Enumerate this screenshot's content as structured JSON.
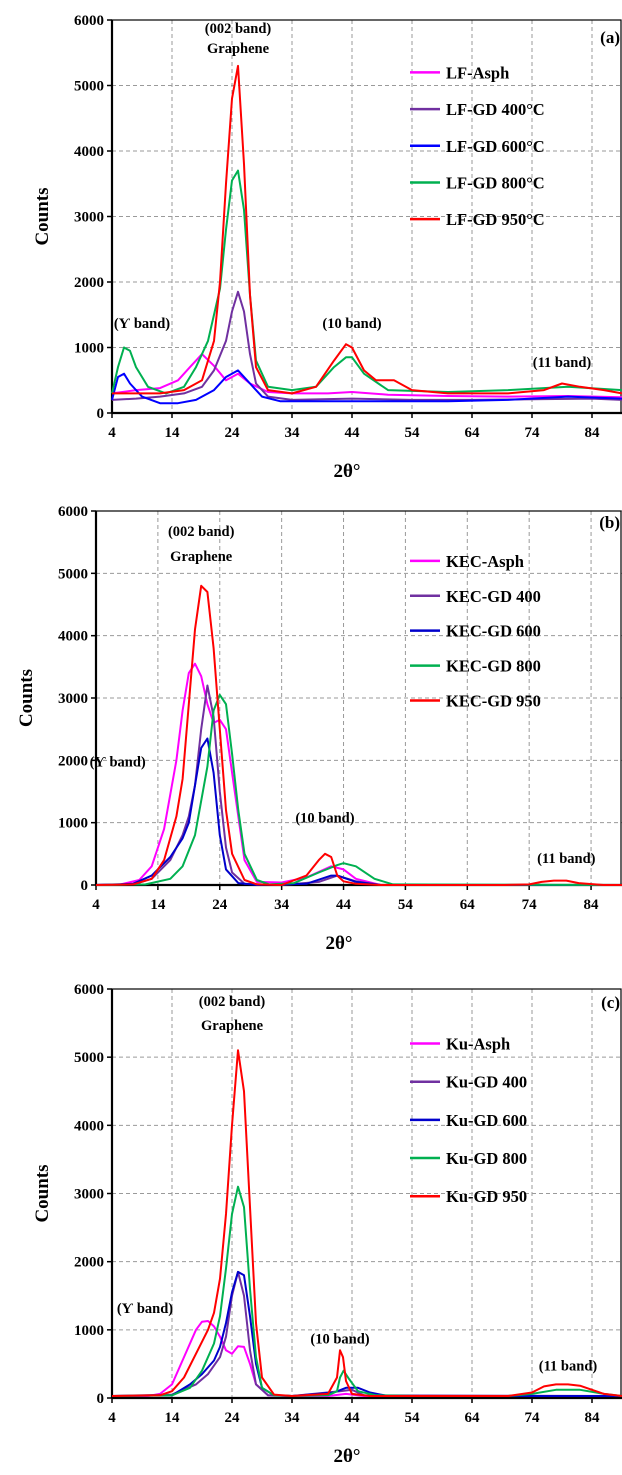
{
  "chart_data": [
    {
      "type": "line",
      "panel_label": "(a)",
      "xlabel": "2θ°",
      "ylabel": "Counts",
      "xlim": [
        4,
        89
      ],
      "ylim": [
        0,
        6000
      ],
      "xticks": [
        4,
        14,
        24,
        34,
        44,
        54,
        64,
        74,
        84
      ],
      "yticks": [
        0,
        1000,
        2000,
        3000,
        4000,
        5000,
        6000
      ],
      "grid": true,
      "legend": "top-right",
      "annotations": [
        {
          "text": "(002 band)",
          "x": 25,
          "y": 5800
        },
        {
          "text": "Graphene",
          "x": 25,
          "y": 5500
        },
        {
          "text": "(Ƴ band)",
          "x": 9,
          "y": 1300
        },
        {
          "text": "(10 band)",
          "x": 44,
          "y": 1300
        },
        {
          "text": "(11 band)",
          "x": 79,
          "y": 700
        }
      ],
      "series": [
        {
          "name": "LF-Asph",
          "color": "#ff00ff",
          "x": [
            4,
            8,
            12,
            15,
            17,
            19,
            21,
            23,
            25,
            27,
            30,
            34,
            40,
            44,
            50,
            60,
            70,
            80,
            89
          ],
          "y": [
            300,
            350,
            380,
            500,
            700,
            900,
            720,
            500,
            600,
            450,
            320,
            300,
            300,
            320,
            280,
            260,
            250,
            260,
            240
          ]
        },
        {
          "name": "LF-GD 400°C",
          "color": "#7030a0",
          "x": [
            4,
            8,
            12,
            16,
            19,
            21,
            23,
            24,
            25,
            26,
            27,
            28,
            30,
            34,
            44,
            54,
            64,
            74,
            84,
            89
          ],
          "y": [
            200,
            220,
            250,
            300,
            400,
            650,
            1100,
            1550,
            1850,
            1550,
            900,
            450,
            250,
            200,
            220,
            200,
            200,
            210,
            220,
            200
          ]
        },
        {
          "name": "LF-GD 600°C",
          "color": "#0000ff",
          "x": [
            4,
            5,
            6,
            7,
            9,
            12,
            15,
            18,
            21,
            23,
            25,
            27,
            29,
            32,
            40,
            50,
            60,
            70,
            80,
            89
          ],
          "y": [
            200,
            550,
            600,
            450,
            250,
            150,
            150,
            200,
            350,
            550,
            650,
            450,
            250,
            180,
            180,
            180,
            180,
            200,
            250,
            220
          ]
        },
        {
          "name": "LF-GD 800°C",
          "color": "#00b050",
          "x": [
            4,
            5,
            6,
            7,
            8,
            10,
            13,
            16,
            18,
            20,
            22,
            23,
            24,
            25,
            26,
            27,
            28,
            30,
            34,
            38,
            41,
            43,
            44,
            46,
            50,
            60,
            70,
            80,
            89
          ],
          "y": [
            300,
            700,
            1000,
            950,
            700,
            400,
            300,
            400,
            700,
            1100,
            1900,
            2800,
            3550,
            3700,
            3100,
            1800,
            800,
            400,
            350,
            400,
            700,
            850,
            850,
            600,
            350,
            320,
            350,
            400,
            350
          ]
        },
        {
          "name": "LF-GD 950°C",
          "color": "#ff0000",
          "x": [
            4,
            8,
            12,
            16,
            19,
            21,
            22,
            23,
            24,
            25,
            26,
            27,
            28,
            30,
            34,
            38,
            41,
            43,
            44,
            46,
            48,
            51,
            54,
            60,
            70,
            76,
            79,
            82,
            86,
            89
          ],
          "y": [
            300,
            300,
            300,
            350,
            500,
            1100,
            2000,
            3500,
            4800,
            5300,
            3800,
            1800,
            700,
            350,
            300,
            400,
            800,
            1050,
            1000,
            650,
            500,
            500,
            350,
            300,
            300,
            350,
            450,
            400,
            350,
            300
          ]
        }
      ]
    },
    {
      "type": "line",
      "panel_label": "(b)",
      "xlabel": "2θ°",
      "ylabel": "Counts",
      "xlim": [
        4,
        89
      ],
      "ylim": [
        0,
        6000
      ],
      "xticks": [
        4,
        14,
        24,
        34,
        44,
        54,
        64,
        74,
        84
      ],
      "yticks": [
        0,
        1000,
        2000,
        3000,
        4000,
        5000,
        6000
      ],
      "grid": true,
      "legend": "top-right",
      "annotations": [
        {
          "text": "(002 band)",
          "x": 21,
          "y": 5600
        },
        {
          "text": "Graphene",
          "x": 21,
          "y": 5200
        },
        {
          "text": "(Ƴ band)",
          "x": 7.5,
          "y": 1900
        },
        {
          "text": "(10 band)",
          "x": 41,
          "y": 1000
        },
        {
          "text": "(11 band)",
          "x": 80,
          "y": 350
        }
      ],
      "series": [
        {
          "name": "KEC-Asph",
          "color": "#ff00ff",
          "x": [
            4,
            8,
            11,
            13,
            15,
            17,
            18,
            19,
            20,
            21,
            22,
            23,
            24,
            25,
            26,
            28,
            30,
            34,
            38,
            42,
            44,
            46,
            50,
            89
          ],
          "y": [
            0,
            10,
            80,
            300,
            900,
            2000,
            2800,
            3400,
            3550,
            3350,
            2900,
            2600,
            2650,
            2500,
            1800,
            400,
            50,
            40,
            120,
            300,
            250,
            100,
            0,
            0
          ]
        },
        {
          "name": "KEC-GD 400",
          "color": "#7030a0",
          "x": [
            4,
            10,
            13,
            16,
            18,
            19,
            20,
            21,
            22,
            23,
            24,
            25,
            26,
            28,
            34,
            40,
            43,
            46,
            50,
            89
          ],
          "y": [
            0,
            10,
            100,
            400,
            800,
            1100,
            1600,
            2500,
            3200,
            2700,
            1500,
            600,
            200,
            20,
            0,
            50,
            150,
            60,
            0,
            0
          ]
        },
        {
          "name": "KEC-GD 600",
          "color": "#0000cc",
          "x": [
            4,
            10,
            13,
            16,
            18,
            19,
            20,
            21,
            22,
            23,
            24,
            25,
            27,
            30,
            38,
            42,
            43,
            46,
            50,
            89
          ],
          "y": [
            0,
            20,
            150,
            450,
            750,
            1000,
            1600,
            2200,
            2350,
            1800,
            800,
            250,
            30,
            0,
            20,
            150,
            150,
            50,
            0,
            0
          ]
        },
        {
          "name": "KEC-GD 800",
          "color": "#00b050",
          "x": [
            4,
            12,
            16,
            18,
            20,
            22,
            23,
            24,
            25,
            26,
            27,
            28,
            30,
            32,
            36,
            40,
            43,
            44,
            46,
            49,
            52,
            89
          ],
          "y": [
            0,
            10,
            100,
            300,
            800,
            1900,
            2800,
            3050,
            2900,
            2100,
            1200,
            500,
            80,
            10,
            30,
            200,
            320,
            350,
            300,
            100,
            10,
            0
          ]
        },
        {
          "name": "KEC-GD 950",
          "color": "#ff0000",
          "x": [
            4,
            10,
            13,
            15,
            17,
            18,
            19,
            20,
            21,
            22,
            23,
            24,
            25,
            26,
            28,
            30,
            34,
            38,
            40,
            41,
            42,
            43,
            44,
            46,
            50,
            60,
            70,
            74,
            76,
            78,
            80,
            82,
            86,
            89
          ],
          "y": [
            0,
            10,
            100,
            400,
            1100,
            1700,
            2900,
            4100,
            4800,
            4700,
            3800,
            2500,
            1200,
            500,
            80,
            10,
            0,
            150,
            400,
            500,
            450,
            150,
            60,
            20,
            0,
            0,
            0,
            10,
            50,
            70,
            70,
            30,
            0,
            0
          ]
        }
      ]
    },
    {
      "type": "line",
      "panel_label": "(c)",
      "xlabel": "2θ°",
      "ylabel": "Counts",
      "xlim": [
        4,
        89
      ],
      "ylim": [
        0,
        6000
      ],
      "xticks": [
        4,
        14,
        24,
        34,
        44,
        54,
        64,
        74,
        84
      ],
      "yticks": [
        0,
        1000,
        2000,
        3000,
        4000,
        5000,
        6000
      ],
      "grid": true,
      "legend": "top-right",
      "annotations": [
        {
          "text": "(002 band)",
          "x": 24,
          "y": 5750
        },
        {
          "text": "Graphene",
          "x": 24,
          "y": 5400
        },
        {
          "text": "(Ƴ band)",
          "x": 9.5,
          "y": 1250
        },
        {
          "text": "(10 band)",
          "x": 42,
          "y": 800
        },
        {
          "text": "(11 band)",
          "x": 80,
          "y": 400
        }
      ],
      "series": [
        {
          "name": "Ku-Asph",
          "color": "#ff00ff",
          "x": [
            4,
            10,
            12,
            14,
            16,
            18,
            19,
            20,
            21,
            22,
            23,
            24,
            25,
            26,
            27,
            28,
            30,
            34,
            40,
            43,
            46,
            89
          ],
          "y": [
            30,
            30,
            60,
            200,
            600,
            1000,
            1120,
            1130,
            1050,
            900,
            700,
            650,
            760,
            750,
            500,
            200,
            40,
            30,
            30,
            60,
            30,
            30
          ]
        },
        {
          "name": "Ku-GD 400",
          "color": "#7030a0",
          "x": [
            4,
            14,
            18,
            20,
            22,
            23,
            24,
            25,
            26,
            27,
            28,
            30,
            34,
            42,
            44,
            46,
            89
          ],
          "y": [
            30,
            50,
            200,
            350,
            600,
            900,
            1500,
            1850,
            1500,
            700,
            200,
            40,
            30,
            100,
            120,
            40,
            30
          ]
        },
        {
          "name": "Ku-GD 600",
          "color": "#0000cc",
          "x": [
            4,
            14,
            17,
            19,
            21,
            22,
            23,
            24,
            25,
            26,
            27,
            28,
            29,
            31,
            34,
            41,
            43,
            45,
            47,
            50,
            89
          ],
          "y": [
            30,
            40,
            200,
            350,
            550,
            750,
            1100,
            1550,
            1850,
            1800,
            1200,
            500,
            150,
            40,
            30,
            80,
            150,
            150,
            80,
            30,
            30
          ]
        },
        {
          "name": "Ku-GD 800",
          "color": "#00b050",
          "x": [
            4,
            14,
            17,
            19,
            21,
            22,
            23,
            24,
            25,
            26,
            27,
            28,
            29,
            31,
            34,
            40,
            41.5,
            42,
            42.6,
            43.5,
            45,
            48,
            55,
            70,
            74,
            78,
            82,
            86,
            89
          ],
          "y": [
            30,
            40,
            150,
            400,
            800,
            1200,
            1900,
            2700,
            3100,
            2800,
            1600,
            600,
            150,
            40,
            30,
            40,
            100,
            300,
            400,
            280,
            100,
            40,
            30,
            30,
            60,
            120,
            120,
            60,
            30
          ]
        },
        {
          "name": "Ku-GD 950",
          "color": "#ff0000",
          "x": [
            4,
            12,
            14,
            16,
            18,
            20,
            21,
            22,
            23,
            24,
            25,
            26,
            27,
            28,
            29,
            31,
            34,
            40,
            41.5,
            42,
            42.5,
            43,
            44,
            47,
            55,
            70,
            74,
            76,
            78,
            80,
            82,
            84,
            86,
            89
          ],
          "y": [
            30,
            40,
            100,
            300,
            650,
            1000,
            1250,
            1750,
            2700,
            4000,
            5100,
            4500,
            2800,
            1100,
            300,
            50,
            30,
            60,
            300,
            700,
            600,
            250,
            60,
            30,
            30,
            30,
            80,
            170,
            200,
            200,
            180,
            120,
            60,
            30
          ]
        }
      ]
    }
  ]
}
